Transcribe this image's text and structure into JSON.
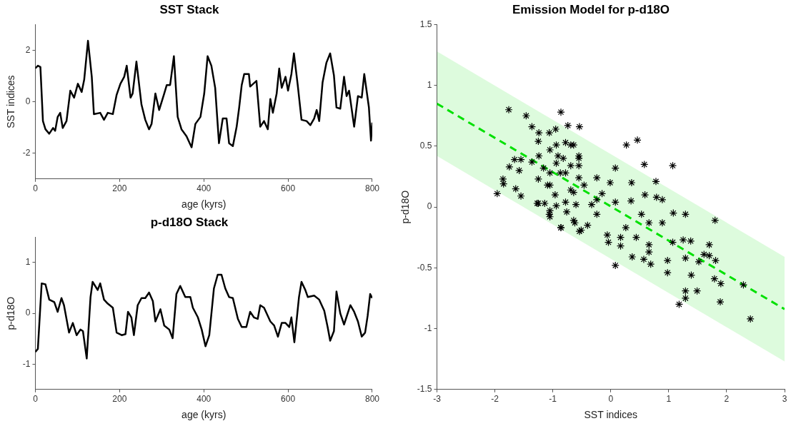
{
  "chart_data": [
    {
      "type": "line",
      "title": "SST Stack",
      "xlabel": "age (kyrs)",
      "ylabel": "SST indices",
      "xlim": [
        0,
        800
      ],
      "xticks": [
        0,
        200,
        400,
        600,
        800
      ],
      "ylim": [
        -3,
        3
      ],
      "yticks": [
        -2,
        0,
        2
      ],
      "grid": false,
      "x": [
        0,
        6,
        12,
        18,
        24,
        33,
        42,
        47,
        53,
        59,
        65,
        74,
        83,
        92,
        101,
        110,
        116,
        125,
        134,
        139,
        154,
        163,
        172,
        184,
        193,
        202,
        211,
        217,
        226,
        231,
        240,
        252,
        261,
        270,
        276,
        285,
        294,
        306,
        312,
        320,
        329,
        338,
        347,
        359,
        371,
        380,
        392,
        401,
        409,
        418,
        427,
        436,
        445,
        454,
        460,
        469,
        478,
        484,
        490,
        496,
        507,
        510,
        525,
        528,
        534,
        543,
        552,
        558,
        564,
        573,
        579,
        585,
        594,
        600,
        608,
        614,
        623,
        632,
        644,
        653,
        662,
        668,
        674,
        682,
        691,
        700,
        709,
        715,
        724,
        733,
        739,
        745,
        757,
        766,
        775,
        781,
        792,
        797,
        800
      ],
      "series": [
        {
          "color": "#000000",
          "values": [
            1.3,
            1.4,
            1.35,
            -0.75,
            -1.07,
            -1.24,
            -1.02,
            -1.13,
            -0.59,
            -0.43,
            -1.02,
            -0.75,
            0.43,
            0.16,
            0.7,
            0.38,
            0.86,
            2.37,
            0.97,
            -0.48,
            -0.43,
            -0.7,
            -0.43,
            -0.48,
            0.27,
            0.7,
            0.97,
            1.4,
            0.16,
            0.32,
            1.56,
            -0.11,
            -0.7,
            -1.07,
            -0.86,
            0.32,
            -0.32,
            0.32,
            0.65,
            0.65,
            1.77,
            -0.59,
            -1.07,
            -1.34,
            -1.77,
            -0.86,
            -0.59,
            0.32,
            1.77,
            1.4,
            0.54,
            -1.61,
            -0.65,
            -0.65,
            -1.61,
            -1.72,
            -0.97,
            -0.22,
            0.65,
            1.08,
            1.08,
            0.59,
            0.81,
            0.22,
            -0.97,
            -0.75,
            -1.07,
            0.11,
            -0.43,
            0.32,
            1.29,
            0.54,
            0.97,
            0.43,
            1.08,
            1.88,
            0.65,
            -0.7,
            -0.75,
            -0.91,
            -0.65,
            -0.32,
            -0.75,
            0.75,
            1.51,
            1.88,
            1.02,
            -0.22,
            -0.27,
            0.97,
            0.22,
            0.43,
            -0.97,
            0.22,
            0.16,
            1.08,
            -0.22,
            -1.51,
            -0.81
          ]
        }
      ]
    },
    {
      "type": "line",
      "title": "p-d18O Stack",
      "xlabel": "age (kyrs)",
      "ylabel": "p-d18O",
      "xlim": [
        0,
        800
      ],
      "xticks": [
        0,
        200,
        400,
        600,
        800
      ],
      "ylim": [
        -1.5,
        1.5
      ],
      "yticks": [
        -1,
        0,
        1
      ],
      "grid": false,
      "x": [
        0,
        6,
        15,
        24,
        33,
        45,
        53,
        62,
        68,
        80,
        89,
        98,
        107,
        113,
        122,
        131,
        136,
        148,
        154,
        163,
        172,
        184,
        193,
        205,
        214,
        220,
        228,
        234,
        243,
        252,
        261,
        270,
        279,
        285,
        297,
        306,
        318,
        326,
        335,
        344,
        356,
        368,
        374,
        386,
        395,
        404,
        413,
        424,
        433,
        442,
        451,
        460,
        469,
        481,
        490,
        501,
        510,
        519,
        528,
        534,
        543,
        558,
        567,
        576,
        585,
        594,
        603,
        608,
        615,
        626,
        632,
        641,
        647,
        662,
        674,
        686,
        694,
        700,
        709,
        715,
        724,
        733,
        748,
        757,
        766,
        775,
        783,
        789,
        795,
        800
      ],
      "series": [
        {
          "color": "#000000",
          "values": [
            -0.76,
            -0.7,
            0.59,
            0.57,
            0.27,
            0.22,
            0.03,
            0.3,
            0.16,
            -0.38,
            -0.19,
            -0.43,
            -0.32,
            -0.35,
            -0.89,
            0.32,
            0.62,
            0.46,
            0.59,
            0.27,
            0.19,
            0.11,
            -0.38,
            -0.43,
            -0.41,
            0.03,
            -0.08,
            -0.43,
            0.16,
            0.3,
            0.3,
            0.41,
            0.24,
            -0.16,
            0.08,
            -0.24,
            -0.32,
            -0.49,
            0.38,
            0.54,
            0.32,
            0.32,
            0.11,
            -0.08,
            -0.32,
            -0.65,
            -0.43,
            0.49,
            0.76,
            0.76,
            0.49,
            0.32,
            0.3,
            -0.11,
            -0.27,
            -0.27,
            0.03,
            -0.08,
            -0.11,
            0.16,
            0.11,
            -0.16,
            -0.24,
            -0.46,
            -0.19,
            -0.19,
            -0.27,
            -0.08,
            -0.57,
            0.32,
            0.62,
            0.46,
            0.32,
            0.35,
            0.27,
            0.05,
            -0.27,
            -0.54,
            -0.35,
            0.43,
            0,
            -0.22,
            0.16,
            0.03,
            -0.16,
            -0.46,
            -0.38,
            -0.05,
            0.38,
            0.3
          ]
        }
      ]
    },
    {
      "type": "scatter",
      "title": "Emission Model for p-d18O",
      "xlabel": "SST indices",
      "ylabel": "p-d18O",
      "xlim": [
        -3,
        3
      ],
      "xticks": [
        -3,
        -2,
        -1,
        0,
        1,
        2,
        3
      ],
      "ylim": [
        -1.5,
        1.5
      ],
      "yticks": [
        -1.5,
        -1,
        -0.5,
        0,
        0.5,
        1,
        1.5
      ],
      "grid": false,
      "series": [
        {
          "type": "scatter",
          "color": "#000000",
          "marker": "cross",
          "x": [
            -1.76,
            -1.46,
            -0.86,
            -0.54,
            -1.36,
            -1.24,
            -1.25,
            -1.06,
            -0.95,
            -0.74,
            -0.94,
            -0.78,
            -1.75,
            -1.66,
            -1.55,
            -1.58,
            -1.86,
            -1.85,
            -1.96,
            -1.64,
            -1.55,
            -1.36,
            -1.24,
            -1.25,
            -1.16,
            -1.05,
            -0.94,
            -0.82,
            -0.87,
            -0.69,
            -1.05,
            -0.96,
            -1.25,
            -1.14,
            -1.05,
            -1.05,
            -0.86,
            -0.76,
            -0.62,
            -0.51,
            -0.69,
            -0.6,
            -0.55,
            -0.78,
            -0.94,
            -0.64,
            -0.55,
            0.27,
            0.46,
            0.58,
            1.07,
            0.08,
            0.36,
            0.78,
            0.59,
            0.79,
            0.89,
            1.29,
            1.08,
            1.8,
            -1.27,
            -1.06,
            -0.86,
            -0.64,
            -0.54,
            -0.4,
            -0.24,
            0.08,
            0.35,
            -0.04,
            0.17,
            0.37,
            0.57,
            0.69,
            0.08,
            0.98,
            0.98,
            1.25,
            1.38,
            1.7,
            1.7,
            1.81,
            1.39,
            1.29,
            1.79,
            1.9,
            1.49,
            1.29,
            1.29,
            1.18,
            1.89,
            2.29,
            2.41,
            0.66,
            0.44,
            0.66,
            0.89,
            -0.24,
            -0.46,
            -0.78,
            -0.91,
            -0.55,
            -0.15,
            -0.24,
            -0.01,
            0.17,
            0.53,
            0.26,
            1.07,
            1.52,
            1.61,
            -0.33,
            -0.06,
            0.66,
            -0.64,
            -1.09,
            -1.05,
            -0.69,
            -0.55
          ],
          "values": [
            0.8,
            0.75,
            0.78,
            0.66,
            0.66,
            0.61,
            0.54,
            0.61,
            0.64,
            0.67,
            0.51,
            0.53,
            0.33,
            0.39,
            0.39,
            0.3,
            0.23,
            0.19,
            0.11,
            0.15,
            0.09,
            0.37,
            0.42,
            0.23,
            0.32,
            0.28,
            0.36,
            0.4,
            0.28,
            0.34,
            0.18,
            0.1,
            0.03,
            0.03,
            -0.03,
            -0.08,
            -0.17,
            -0.04,
            -0.13,
            -0.19,
            0.14,
            0.02,
            0.24,
            0.04,
            0.01,
            0.51,
            0.4,
            0.51,
            0.55,
            0.35,
            0.34,
            0.32,
            0.2,
            0.21,
            0.1,
            0.08,
            0.06,
            -0.06,
            -0.05,
            -0.11,
            0.03,
            -0.06,
            -0.17,
            -0.11,
            -0.2,
            -0.15,
            -0.06,
            0.04,
            0.05,
            -0.29,
            -0.32,
            -0.41,
            -0.43,
            -0.47,
            -0.48,
            -0.54,
            -0.44,
            -0.27,
            -0.28,
            -0.31,
            -0.4,
            -0.44,
            -0.56,
            -0.42,
            -0.59,
            -0.63,
            -0.69,
            -0.69,
            -0.75,
            -0.8,
            -0.78,
            -0.64,
            -0.92,
            -0.31,
            -0.25,
            -0.13,
            -0.13,
            0.06,
            0.18,
            0.28,
            0.42,
            0.34,
            0.11,
            0.24,
            0.2,
            -0.25,
            -0.06,
            -0.17,
            -0.29,
            -0.45,
            -0.39,
            0.02,
            -0.23,
            -0.37,
            0.12,
            0.18,
            0.47,
            0.51,
            0.42
          ]
        },
        {
          "type": "line",
          "color": "#00e000",
          "line_style": "dashed",
          "x": [
            -3,
            3
          ],
          "values": [
            0.85,
            -0.84
          ],
          "lower": [
            0.42,
            -1.27
          ],
          "upper": [
            1.28,
            -0.41
          ]
        }
      ]
    }
  ]
}
